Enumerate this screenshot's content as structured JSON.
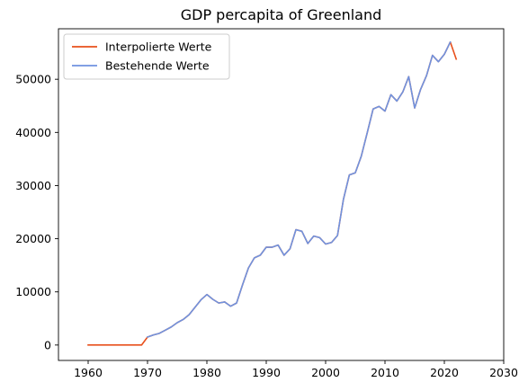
{
  "chart_data": {
    "type": "line",
    "title": "GDP percapita of Greenland",
    "xlabel": "",
    "ylabel": "",
    "xlim": [
      1955,
      2030
    ],
    "ylim": [
      -2900,
      59500
    ],
    "xticks": [
      1960,
      1970,
      1980,
      1990,
      2000,
      2010,
      2020,
      2030
    ],
    "yticks": [
      0,
      10000,
      20000,
      30000,
      40000,
      50000
    ],
    "legend_position": "top-left",
    "grid": false,
    "series": [
      {
        "name": "Interpolierte Werte",
        "color": "#e8501c",
        "x": [
          1960,
          1961,
          1962,
          1963,
          1964,
          1965,
          1966,
          1967,
          1968,
          1969,
          1970,
          1971,
          1972,
          1973,
          1974,
          1975,
          1976,
          1977,
          1978,
          1979,
          1980,
          1981,
          1982,
          1983,
          1984,
          1985,
          1986,
          1987,
          1988,
          1989,
          1990,
          1991,
          1992,
          1993,
          1994,
          1995,
          1996,
          1997,
          1998,
          1999,
          2000,
          2001,
          2002,
          2003,
          2004,
          2005,
          2006,
          2007,
          2008,
          2009,
          2010,
          2011,
          2012,
          2013,
          2014,
          2015,
          2016,
          2017,
          2018,
          2019,
          2020,
          2021,
          2022
        ],
        "y": [
          0,
          0,
          0,
          0,
          0,
          0,
          0,
          0,
          0,
          0,
          1500,
          1900,
          2200,
          2800,
          3400,
          4200,
          4800,
          5700,
          7100,
          8500,
          9500,
          8600,
          7900,
          8100,
          7300,
          7900,
          11300,
          14500,
          16400,
          16900,
          18400,
          18400,
          18800,
          16900,
          18100,
          21700,
          21400,
          19100,
          20500,
          20200,
          19000,
          19300,
          20600,
          27400,
          32000,
          32400,
          35500,
          39900,
          44400,
          44900,
          44000,
          47100,
          45900,
          47600,
          50500,
          44600,
          48100,
          50700,
          54500,
          53300,
          54700,
          57000,
          53800
        ]
      },
      {
        "name": "Bestehende Werte",
        "color": "#6f93e0",
        "x": [
          1970,
          1971,
          1972,
          1973,
          1974,
          1975,
          1976,
          1977,
          1978,
          1979,
          1980,
          1981,
          1982,
          1983,
          1984,
          1985,
          1986,
          1987,
          1988,
          1989,
          1990,
          1991,
          1992,
          1993,
          1994,
          1995,
          1996,
          1997,
          1998,
          1999,
          2000,
          2001,
          2002,
          2003,
          2004,
          2005,
          2006,
          2007,
          2008,
          2009,
          2010,
          2011,
          2012,
          2013,
          2014,
          2015,
          2016,
          2017,
          2018,
          2019,
          2020,
          2021
        ],
        "y": [
          1500,
          1900,
          2200,
          2800,
          3400,
          4200,
          4800,
          5700,
          7100,
          8500,
          9500,
          8600,
          7900,
          8100,
          7300,
          7900,
          11300,
          14500,
          16400,
          16900,
          18400,
          18400,
          18800,
          16900,
          18100,
          21700,
          21400,
          19100,
          20500,
          20200,
          19000,
          19300,
          20600,
          27400,
          32000,
          32400,
          35500,
          39900,
          44400,
          44900,
          44000,
          47100,
          45900,
          47600,
          50500,
          44600,
          48100,
          50700,
          54500,
          53300,
          54700,
          57000
        ]
      }
    ]
  }
}
